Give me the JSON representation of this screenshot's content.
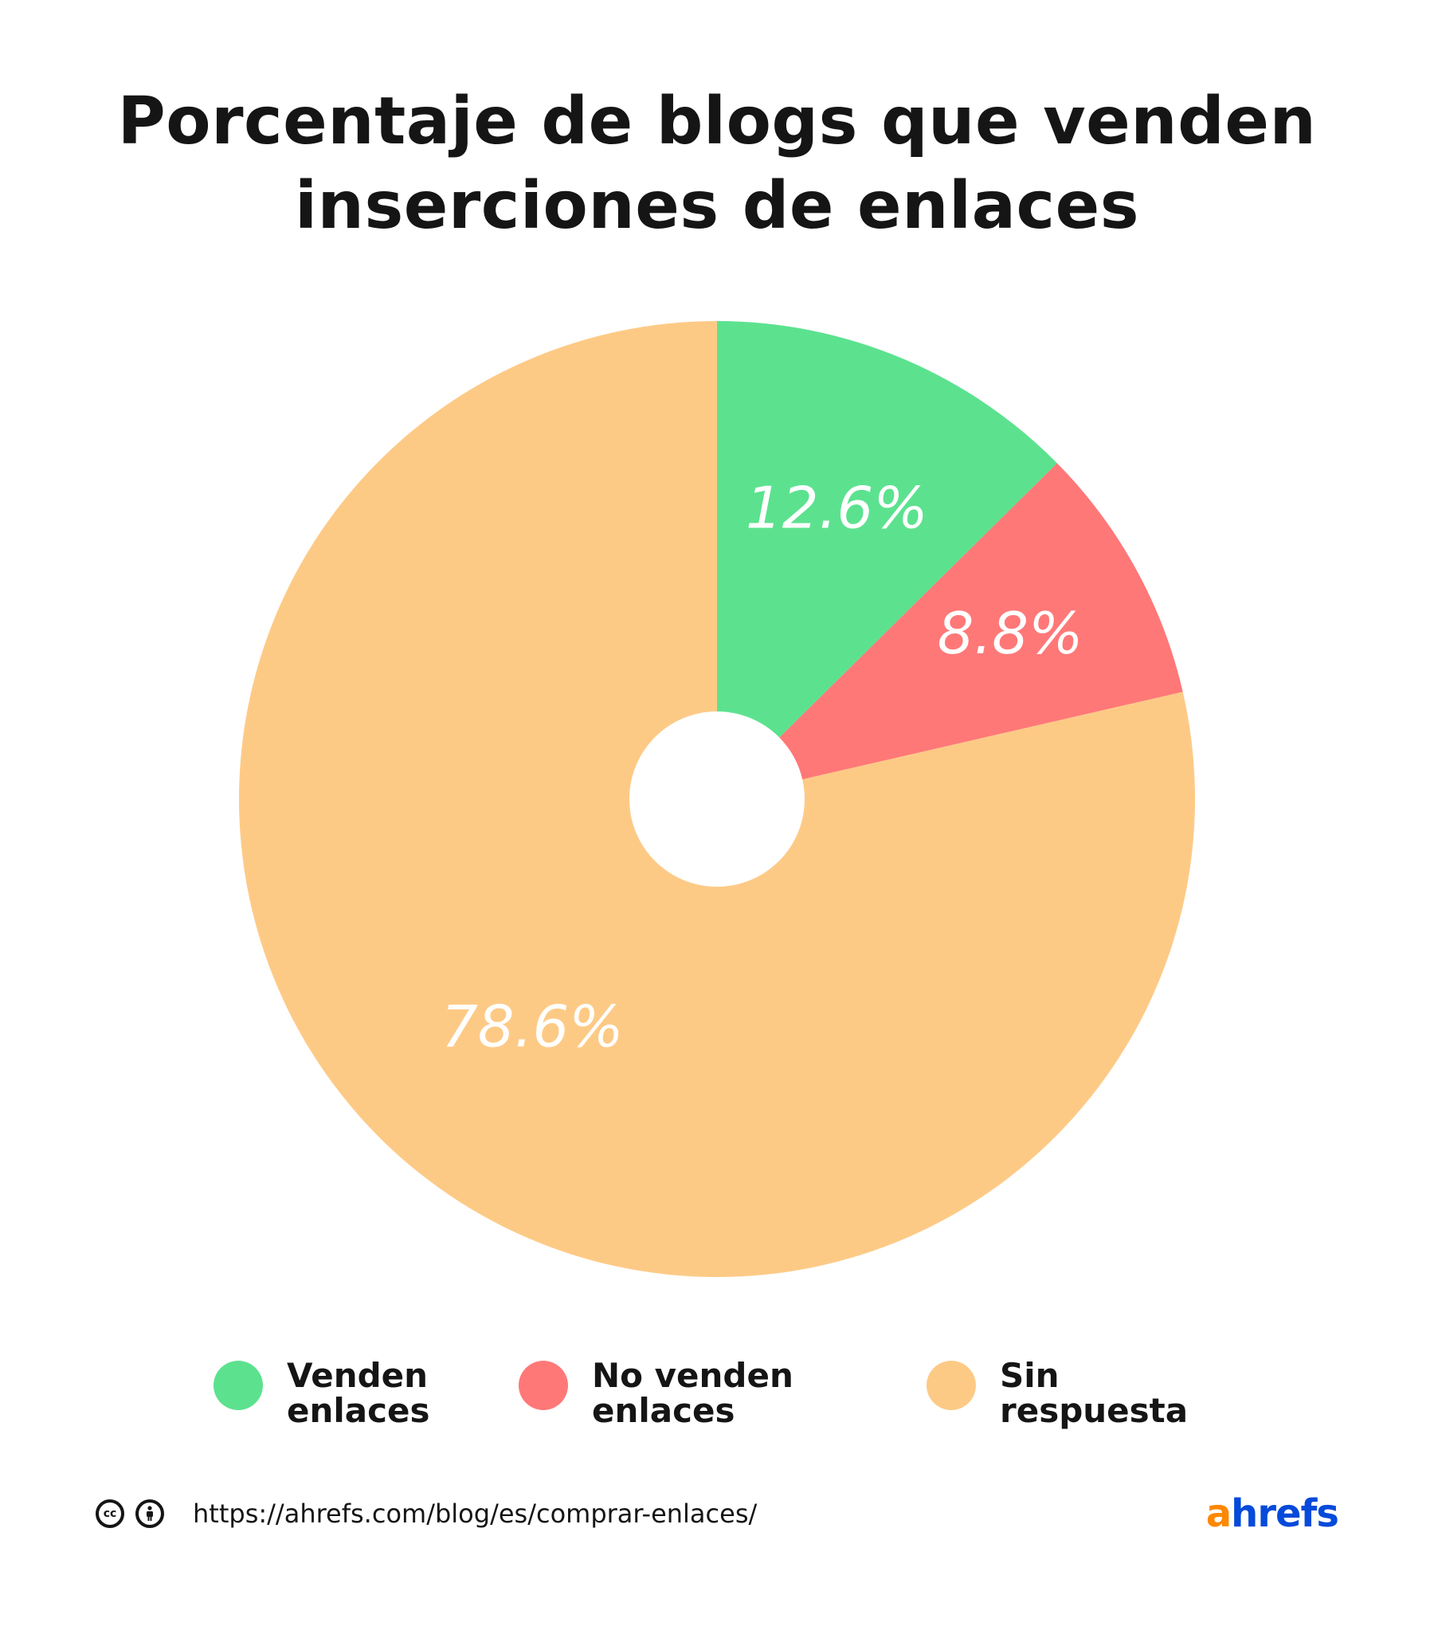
{
  "chart_data": {
    "type": "pie",
    "title_lines": [
      "Porcentaje de blogs que venden",
      "inserciones de enlaces"
    ],
    "categories": [
      "Venden enlaces",
      "No venden enlaces",
      "Sin respuesta"
    ],
    "values": [
      12.6,
      8.8,
      78.6
    ],
    "value_labels": [
      "12.6%",
      "8.8%",
      "78.6%"
    ],
    "colors": [
      "#5ce28f",
      "#ff7878",
      "#fdca86"
    ],
    "donut_hole": true,
    "legend_position": "bottom"
  },
  "legend": {
    "items": [
      {
        "line1": "Venden",
        "line2": "enlaces",
        "color": "#5ce28f"
      },
      {
        "line1": "No venden",
        "line2": "enlaces",
        "color": "#ff7878"
      },
      {
        "line1": "Sin",
        "line2": "respuesta",
        "color": "#fdca86"
      }
    ]
  },
  "footer": {
    "license_icons": [
      "creative-commons-icon",
      "attribution-icon"
    ],
    "cc_text": "cc",
    "url": "https://ahrefs.com/blog/es/comprar-enlaces/",
    "brand_a": "a",
    "brand_rest": "hrefs"
  }
}
